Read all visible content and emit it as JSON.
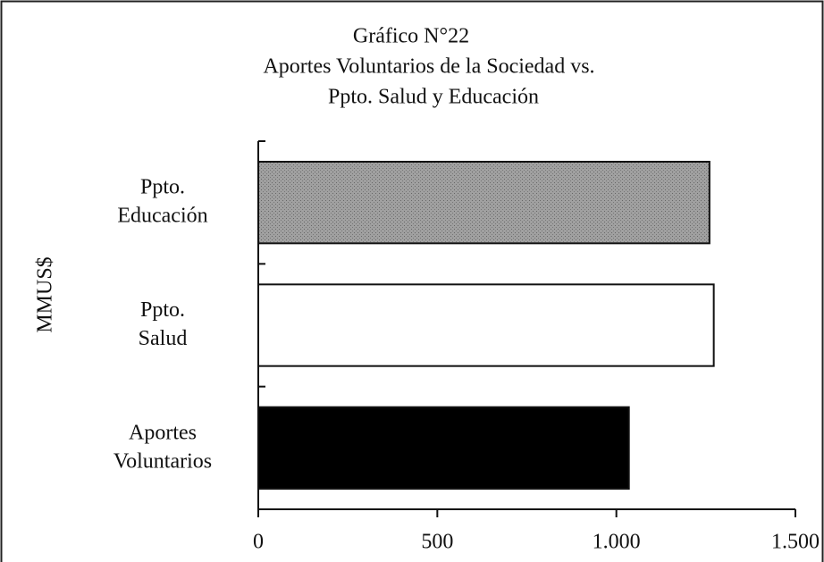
{
  "chart_data": {
    "type": "barh",
    "title": [
      "Gráfico N°22",
      "Aportes Voluntarios de la Sociedad vs.",
      "Ppto. Salud y Educación"
    ],
    "ylabel": "MMUS$",
    "categories": [
      "Ppto. Educación",
      "Ppto. Salud",
      "Aportes Voluntarios"
    ],
    "values": [
      1260,
      1272,
      1035
    ],
    "colors": [
      "#9a9a9a",
      "#ffffff",
      "#000000"
    ],
    "xlim": [
      0,
      1500
    ],
    "xticks": [
      0,
      500,
      {
        "value": 1000,
        "label": "1.000"
      },
      {
        "value": 1500,
        "label": "1.500"
      }
    ]
  }
}
